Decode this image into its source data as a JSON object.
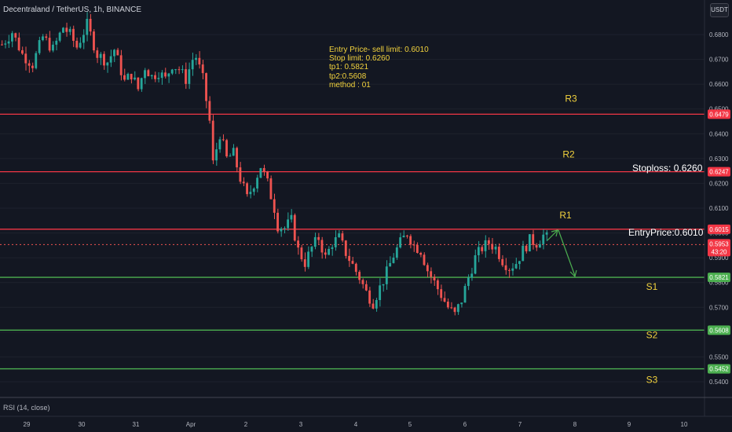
{
  "header": {
    "symbol": "Decentraland / TetherUS, 1h, BINANCE",
    "currency": "USDT"
  },
  "indicator": {
    "label": "RSI (14, close)"
  },
  "annotation": [
    "Entry Price- sell limit: 0.6010",
    "Stop limit:  0.6260",
    "tp1: 0.5821",
    "tp2:0.5608",
    "method : 01"
  ],
  "colors": {
    "background": "#131722",
    "up": "#26a69a",
    "down": "#ef5350",
    "resistance": "#f23645",
    "support": "#4caf50",
    "text_annotation": "#f2d23d"
  },
  "chart_data": {
    "type": "candlestick",
    "y_ticks": [
      "0.6800",
      "0.6700",
      "0.6600",
      "0.6500",
      "0.6400",
      "0.6300",
      "0.6200",
      "0.6100",
      "0.6000",
      "0.5900",
      "0.5800",
      "0.5700",
      "0.5600",
      "0.5500",
      "0.5400"
    ],
    "x_ticks": [
      "29",
      "30",
      "31",
      "Apr",
      "2",
      "3",
      "4",
      "5",
      "6",
      "7",
      "8",
      "9",
      "10"
    ],
    "levels": [
      {
        "name": "R3",
        "price_label": "0.6479",
        "kind": "resistance"
      },
      {
        "name": "R2",
        "price_label": "0.6247",
        "kind": "resistance"
      },
      {
        "name": "R1",
        "price_label": "0.6015",
        "kind": "resistance"
      },
      {
        "name": "S1",
        "price_label": "0.5821",
        "kind": "support"
      },
      {
        "name": "S2",
        "price_label": "0.5608",
        "kind": "support"
      },
      {
        "name": "S3",
        "price_label": "0.5452",
        "kind": "support"
      }
    ],
    "current": {
      "price_label": "0.5953",
      "countdown": "43:20"
    },
    "text_labels": {
      "stoploss": "Stoploss: 0.6260",
      "entry": "EntryPrice:0.6010"
    },
    "path_close": [
      [
        0,
        0.676
      ],
      [
        3,
        0.681
      ],
      [
        6,
        0.672
      ],
      [
        9,
        0.668
      ],
      [
        12,
        0.679
      ],
      [
        15,
        0.674
      ],
      [
        18,
        0.683
      ],
      [
        20,
        0.68
      ],
      [
        22,
        0.675
      ],
      [
        25,
        0.684
      ],
      [
        28,
        0.672
      ],
      [
        31,
        0.669
      ],
      [
        33,
        0.674
      ],
      [
        36,
        0.661
      ],
      [
        38,
        0.664
      ],
      [
        40,
        0.658
      ],
      [
        42,
        0.667
      ],
      [
        44,
        0.663
      ],
      [
        46,
        0.665
      ],
      [
        48,
        0.662
      ],
      [
        50,
        0.668
      ],
      [
        52,
        0.666
      ],
      [
        54,
        0.662
      ],
      [
        56,
        0.67
      ],
      [
        57,
        0.671
      ],
      [
        59,
        0.662
      ],
      [
        61,
        0.645
      ],
      [
        62,
        0.628
      ],
      [
        64,
        0.64
      ],
      [
        66,
        0.63
      ],
      [
        68,
        0.632
      ],
      [
        70,
        0.622
      ],
      [
        72,
        0.614
      ],
      [
        74,
        0.62
      ],
      [
        76,
        0.627
      ],
      [
        78,
        0.62
      ],
      [
        80,
        0.61
      ],
      [
        81,
        0.603
      ],
      [
        83,
        0.602
      ],
      [
        85,
        0.605
      ],
      [
        87,
        0.593
      ],
      [
        89,
        0.588
      ],
      [
        91,
        0.594
      ],
      [
        93,
        0.598
      ],
      [
        95,
        0.59
      ],
      [
        97,
        0.596
      ],
      [
        99,
        0.598
      ],
      [
        101,
        0.592
      ],
      [
        103,
        0.587
      ],
      [
        105,
        0.582
      ],
      [
        107,
        0.576
      ],
      [
        109,
        0.572
      ],
      [
        111,
        0.578
      ],
      [
        113,
        0.584
      ],
      [
        115,
        0.591
      ],
      [
        117,
        0.596
      ],
      [
        119,
        0.6
      ],
      [
        121,
        0.595
      ],
      [
        123,
        0.593
      ],
      [
        125,
        0.585
      ],
      [
        127,
        0.58
      ],
      [
        129,
        0.575
      ],
      [
        131,
        0.57
      ],
      [
        133,
        0.567
      ],
      [
        135,
        0.573
      ],
      [
        137,
        0.582
      ],
      [
        139,
        0.59
      ],
      [
        141,
        0.594
      ],
      [
        143,
        0.596
      ],
      [
        145,
        0.594
      ],
      [
        147,
        0.589
      ],
      [
        149,
        0.586
      ],
      [
        151,
        0.588
      ],
      [
        153,
        0.593
      ],
      [
        155,
        0.597
      ],
      [
        157,
        0.596
      ],
      [
        159,
        0.599
      ],
      [
        160,
        0.598
      ]
    ]
  }
}
